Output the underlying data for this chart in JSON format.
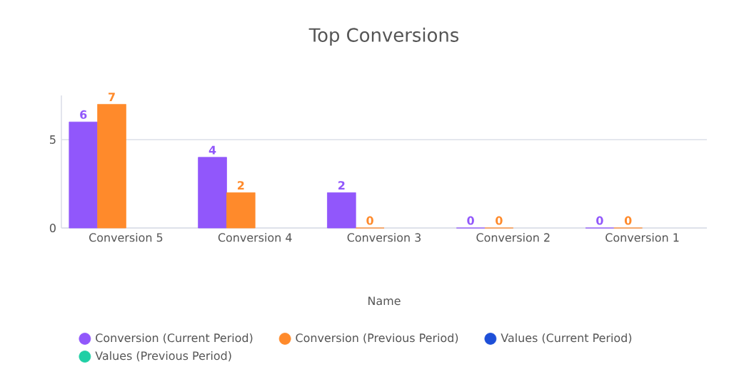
{
  "chart_data": {
    "type": "bar",
    "title": "Top Conversions",
    "xlabel": "Name",
    "categories": [
      "Conversion 5",
      "Conversion 4",
      "Conversion 3",
      "Conversion 2",
      "Conversion 1"
    ],
    "series": [
      {
        "name": "Conversion (Current Period)",
        "color": "#9157fb",
        "values": [
          6,
          4,
          2,
          0,
          0
        ]
      },
      {
        "name": "Conversion (Previous Period)",
        "color": "#ff8a2b",
        "values": [
          7,
          2,
          0,
          0,
          0
        ]
      },
      {
        "name": "Values (Current Period)",
        "color": "#1d4fd8",
        "values": [
          null,
          null,
          null,
          null,
          null
        ]
      },
      {
        "name": "Values (Previous Period)",
        "color": "#20cfa5",
        "values": [
          null,
          null,
          null,
          null,
          null
        ]
      }
    ],
    "ylim": [
      0,
      7.5
    ],
    "yticks": [
      0,
      5
    ],
    "grid": "y",
    "legend": "bottom",
    "data_labels": true
  }
}
